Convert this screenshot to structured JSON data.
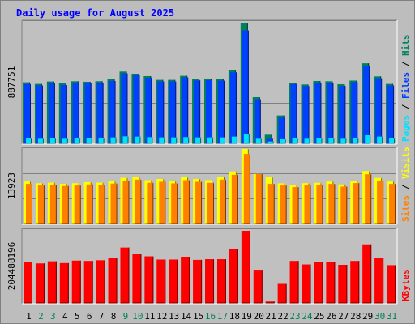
{
  "chart_data": {
    "type": "bar",
    "title": "Daily usage for August 2025",
    "days": [
      "1",
      "2",
      "3",
      "4",
      "5",
      "6",
      "7",
      "8",
      "9",
      "10",
      "11",
      "12",
      "13",
      "14",
      "15",
      "16",
      "17",
      "18",
      "19",
      "20",
      "21",
      "22",
      "23",
      "24",
      "25",
      "26",
      "27",
      "28",
      "29",
      "30",
      "31"
    ],
    "weekend_days": [
      "2",
      "3",
      "9",
      "10",
      "16",
      "17",
      "23",
      "24",
      "30",
      "31"
    ],
    "panels": [
      {
        "name": "hits",
        "ylabel_value": "887751",
        "ymax": 887751,
        "legend": [
          "Pages",
          "Files",
          "Hits"
        ],
        "series": [
          {
            "name": "Hits",
            "values": [
              452000,
              440000,
              458000,
              446000,
              460000,
              456000,
              460000,
              474000,
              532000,
              516000,
              498000,
              470000,
              470000,
              500000,
              478000,
              480000,
              476000,
              540000,
              887751,
              342000,
              64000,
              206000,
              448000,
              436000,
              462000,
              460000,
              438000,
              465000,
              593000,
              496000,
              440000
            ]
          },
          {
            "name": "Files",
            "values": [
              439000,
              428000,
              446000,
              432000,
              448000,
              444000,
              448000,
              462000,
              518000,
              503000,
              486000,
              458000,
              458000,
              488000,
              466000,
              468000,
              464000,
              526000,
              836000,
              326000,
              40000,
              189000,
              437000,
              424000,
              450000,
              448000,
              426000,
              453000,
              570000,
              482000,
              428000
            ]
          },
          {
            "name": "Pages",
            "values": [
              42000,
              40000,
              42000,
              40000,
              42000,
              42000,
              42000,
              44000,
              52000,
              50000,
              46000,
              44000,
              44000,
              46000,
              44000,
              44000,
              44000,
              50000,
              71000,
              40000,
              14000,
              30000,
              42000,
              40000,
              42000,
              42000,
              40000,
              42000,
              60000,
              50000,
              42000
            ]
          }
        ]
      },
      {
        "name": "visits",
        "ylabel_value": "13923",
        "ymax": 13923,
        "legend": [
          "Sites",
          "Visits"
        ],
        "series": [
          {
            "name": "Visits",
            "values": [
              7850,
              7520,
              7630,
              7400,
              7530,
              7720,
              7630,
              7900,
              8540,
              8750,
              8080,
              8320,
              7960,
              8650,
              8320,
              8110,
              8750,
              9720,
              13923,
              9250,
              8640,
              7500,
              7200,
              7530,
              7600,
              7850,
              7300,
              8000,
              9800,
              8520,
              7850
            ]
          },
          {
            "name": "Sites",
            "values": [
              7400,
              7100,
              7200,
              7000,
              7100,
              7300,
              7200,
              7450,
              8000,
              8200,
              7600,
              7800,
              7500,
              8100,
              7800,
              7600,
              8200,
              9100,
              13000,
              9250,
              7400,
              7100,
              6800,
              7100,
              7200,
              7400,
              6900,
              7550,
              9200,
              8000,
              7400
            ]
          }
        ]
      },
      {
        "name": "kbytes",
        "ylabel_value": "204488196",
        "ymax": 204488196,
        "legend": [
          "KBytes"
        ],
        "series": [
          {
            "name": "KBytes",
            "values": [
              115000000,
              112000000,
              118000000,
              113000000,
              120000000,
              119000000,
              121000000,
              128000000,
              157000000,
              140000000,
              132000000,
              123000000,
              123000000,
              131000000,
              122000000,
              124000000,
              124000000,
              154000000,
              204488196,
              94000000,
              4000000,
              54000000,
              119000000,
              109000000,
              117000000,
              117000000,
              108000000,
              119000000,
              166000000,
              127000000,
              107000000
            ]
          }
        ]
      }
    ],
    "colors": {
      "hits": "#00805c",
      "files": "#0040ff",
      "pages": "#00e0ff",
      "visits": "#ffff00",
      "sites": "#ff8000",
      "kbytes": "#ff0000",
      "title": "#0000ff",
      "weekday_label": "#000000",
      "weekend_label": "#00805c"
    }
  }
}
